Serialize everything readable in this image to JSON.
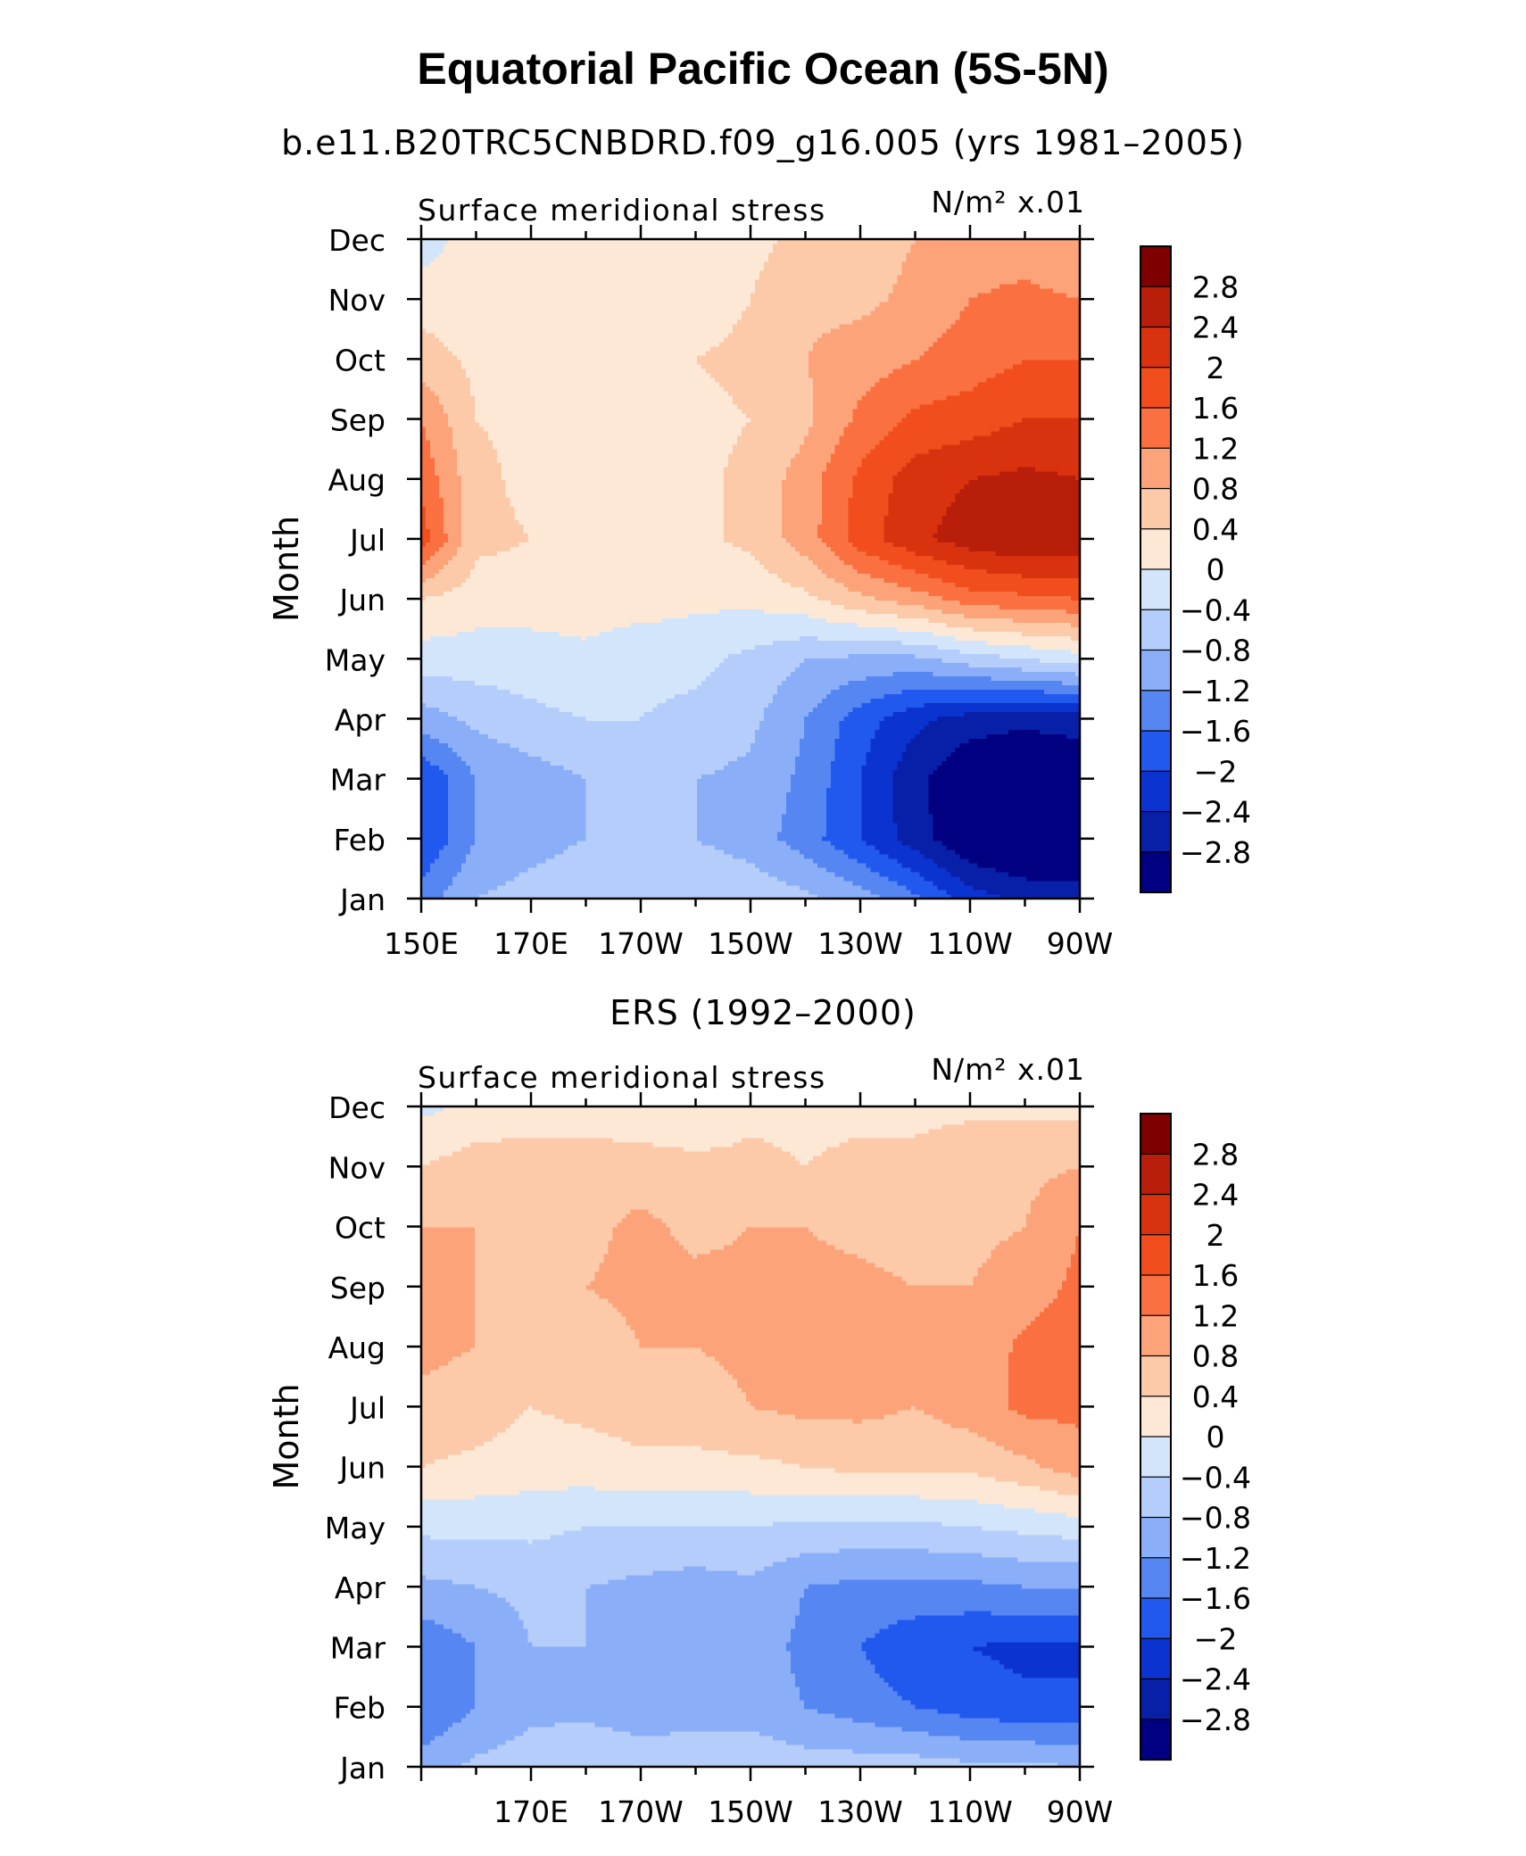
{
  "title": "Equatorial Pacific Ocean (5S-5N)",
  "subtitle": "b.e11.B20TRC5CNBDRD.f09_g16.005 (yrs 1981–2005)",
  "colorbar": {
    "levels": [
      -2.8,
      -2.4,
      -2.0,
      -1.6,
      -1.2,
      -0.8,
      -0.4,
      0,
      0.4,
      0.8,
      1.2,
      1.6,
      2.0,
      2.4,
      2.8
    ],
    "labels": [
      "2.8",
      "2.4",
      "2",
      "1.6",
      "1.2",
      "0.8",
      "0.4",
      "0",
      "−0.4",
      "−0.8",
      "−1.2",
      "−1.6",
      "−2",
      "−2.4",
      "−2.8"
    ],
    "colors": [
      "#7f0000",
      "#b81e0a",
      "#d9320f",
      "#f24d1c",
      "#fa7040",
      "#fca37a",
      "#fcc9a9",
      "#fde8d6",
      "#d3e5fa",
      "#b4cdfa",
      "#8aaef7",
      "#5586f2",
      "#2158ee",
      "#0b33d0",
      "#0820a8",
      "#000080"
    ]
  },
  "chart_data": [
    {
      "type": "heatmap",
      "title": "b.e11.B20TRC5CNBDRD.f09_g16.005 (yrs 1981–2005)",
      "left_label": "Surface meridional stress",
      "right_label": "N/m² x.01",
      "ylabel": "Month",
      "xticks": [
        "150E",
        "170E",
        "170W",
        "150W",
        "130W",
        "110W",
        "90W"
      ],
      "yticks": [
        "Jan",
        "Feb",
        "Mar",
        "Apr",
        "May",
        "Jun",
        "Jul",
        "Aug",
        "Sep",
        "Oct",
        "Nov",
        "Dec"
      ],
      "x_lon": [
        150,
        160,
        170,
        180,
        190,
        200,
        210,
        220,
        230,
        240,
        250,
        260,
        270
      ],
      "values": [
        [
          -1.4,
          -0.8,
          -0.6,
          -0.4,
          -0.4,
          -0.4,
          -0.5,
          -0.7,
          -1.0,
          -1.5,
          -2.2,
          -2.5,
          -2.6
        ],
        [
          -2.0,
          -1.2,
          -1.0,
          -0.8,
          -0.8,
          -0.8,
          -1.0,
          -1.4,
          -2.0,
          -2.6,
          -3.2,
          -3.4,
          -3.3
        ],
        [
          -2.0,
          -1.2,
          -1.0,
          -0.8,
          -0.8,
          -0.8,
          -0.9,
          -1.3,
          -2.0,
          -2.7,
          -3.2,
          -3.3,
          -3.2
        ],
        [
          -1.0,
          -0.7,
          -0.5,
          -0.4,
          -0.4,
          -0.5,
          -0.7,
          -1.2,
          -1.8,
          -2.3,
          -2.6,
          -2.7,
          -2.6
        ],
        [
          -0.2,
          -0.2,
          -0.2,
          -0.1,
          -0.3,
          -0.3,
          -0.5,
          -0.8,
          -0.9,
          -0.9,
          -0.6,
          -0.4,
          -0.2
        ],
        [
          0.4,
          0.2,
          0.2,
          0.2,
          0.2,
          0.1,
          0.1,
          0.3,
          0.7,
          1.0,
          1.4,
          1.5,
          1.6
        ],
        [
          1.8,
          0.5,
          0.4,
          0.3,
          0.3,
          0.3,
          0.5,
          1.0,
          1.8,
          2.3,
          2.6,
          2.8,
          2.7
        ],
        [
          1.5,
          0.5,
          0.3,
          0.2,
          0.2,
          0.3,
          0.5,
          1.0,
          1.7,
          2.2,
          2.4,
          2.5,
          2.4
        ],
        [
          1.2,
          0.4,
          0.3,
          0.2,
          0.2,
          0.3,
          0.4,
          0.7,
          1.3,
          1.7,
          1.8,
          2.0,
          2.0
        ],
        [
          0.6,
          0.3,
          0.2,
          0.2,
          0.3,
          0.4,
          0.5,
          0.8,
          1.0,
          1.2,
          1.4,
          1.6,
          1.6
        ],
        [
          0.2,
          0.2,
          0.3,
          0.2,
          0.2,
          0.2,
          0.4,
          0.7,
          0.7,
          0.9,
          1.2,
          1.3,
          1.2
        ],
        [
          -0.2,
          0.2,
          0.2,
          0.2,
          0.2,
          0.2,
          0.3,
          0.5,
          0.6,
          0.8,
          1.0,
          1.0,
          0.8
        ]
      ]
    },
    {
      "type": "heatmap",
      "title": "ERS (1992–2000)",
      "left_label": "Surface meridional stress",
      "right_label": "N/m² x.01",
      "ylabel": "Month",
      "xticks": [
        "170E",
        "170W",
        "150W",
        "130W",
        "110W",
        "90W"
      ],
      "yticks": [
        "Jan",
        "Feb",
        "Mar",
        "Apr",
        "May",
        "Jun",
        "Jul",
        "Aug",
        "Sep",
        "Oct",
        "Nov",
        "Dec"
      ],
      "x_lon": [
        150,
        160,
        170,
        180,
        190,
        200,
        210,
        220,
        230,
        240,
        250,
        260,
        270
      ],
      "values": [
        [
          -1.0,
          -0.7,
          -0.6,
          -0.5,
          -0.6,
          -0.5,
          -0.5,
          -0.6,
          -0.6,
          -0.6,
          -0.7,
          -0.7,
          -0.8
        ],
        [
          -1.6,
          -1.2,
          -0.9,
          -0.9,
          -1.0,
          -1.0,
          -1.0,
          -1.2,
          -1.4,
          -1.6,
          -1.8,
          -1.9,
          -1.9
        ],
        [
          -1.5,
          -1.2,
          -0.8,
          -0.8,
          -1.0,
          -1.0,
          -1.0,
          -1.3,
          -1.6,
          -1.9,
          -2.0,
          -2.1,
          -2.1
        ],
        [
          -0.9,
          -0.8,
          -0.7,
          -0.8,
          -0.9,
          -1.0,
          -0.9,
          -1.2,
          -1.3,
          -1.3,
          -1.3,
          -1.2,
          -1.2
        ],
        [
          -0.3,
          -0.3,
          -0.3,
          -0.4,
          -0.4,
          -0.4,
          -0.4,
          -0.5,
          -0.5,
          -0.5,
          -0.4,
          -0.3,
          -0.2
        ],
        [
          0.4,
          0.3,
          0.2,
          0.2,
          0.3,
          0.3,
          0.3,
          0.4,
          0.5,
          0.5,
          0.5,
          0.7,
          1.0
        ],
        [
          0.7,
          0.6,
          0.4,
          0.5,
          0.6,
          0.6,
          0.8,
          0.9,
          0.9,
          0.8,
          1.0,
          1.3,
          1.3
        ],
        [
          0.9,
          0.8,
          0.6,
          0.6,
          0.8,
          0.8,
          0.9,
          0.9,
          0.9,
          0.8,
          0.9,
          1.3,
          1.4
        ],
        [
          1.2,
          0.8,
          0.6,
          0.8,
          0.9,
          0.9,
          0.9,
          0.9,
          0.9,
          0.8,
          0.8,
          1.0,
          1.3
        ],
        [
          0.8,
          0.8,
          0.6,
          0.7,
          0.9,
          0.7,
          0.8,
          0.8,
          0.7,
          0.6,
          0.7,
          0.8,
          1.2
        ],
        [
          0.4,
          0.6,
          0.6,
          0.6,
          0.6,
          0.5,
          0.5,
          0.4,
          0.5,
          0.5,
          0.7,
          0.7,
          0.8
        ],
        [
          -0.1,
          0.1,
          0.2,
          0.2,
          0.1,
          0.1,
          0.3,
          0.3,
          0.3,
          0.3,
          0.3,
          0.3,
          0.3
        ]
      ]
    }
  ]
}
